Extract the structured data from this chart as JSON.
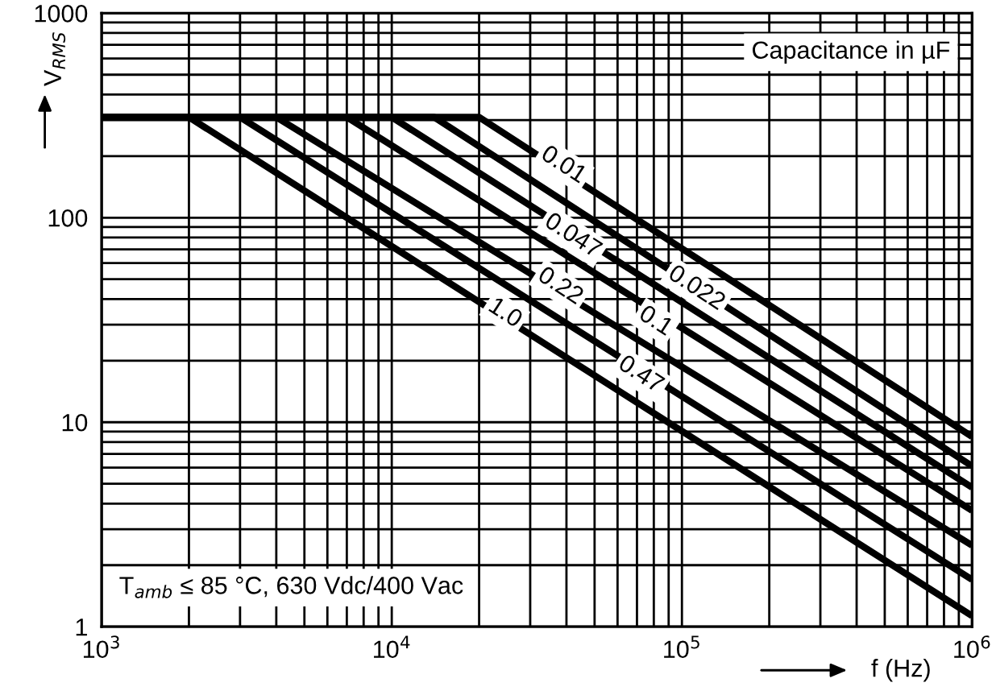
{
  "chart_data": {
    "type": "line",
    "xlabel": "f (Hz)",
    "ylabel": "V$_{RMS}$",
    "log": "xy",
    "grid": true,
    "marker": "none",
    "line_style": "solid",
    "xlim": [
      1000,
      1000000
    ],
    "ylim": [
      1,
      1000
    ],
    "xticks": [
      {
        "value": 1000,
        "label": "10$^{3}$"
      },
      {
        "value": 10000,
        "label": "10$^{4}$"
      },
      {
        "value": 100000,
        "label": "10$^{5}$"
      },
      {
        "value": 1000000,
        "label": "10$^{6}$"
      }
    ],
    "yticks": [
      1,
      10,
      100,
      1000
    ],
    "series": [
      {
        "color": "#000000",
        "x": [
          1000,
          20000,
          1000000
        ],
        "values": [
          310,
          310,
          8.5
        ]
      },
      {
        "color": "#000000",
        "x": [
          1000,
          14000,
          1000000
        ],
        "values": [
          310,
          310,
          6.1
        ]
      },
      {
        "color": "#000000",
        "x": [
          1000,
          10000,
          1000000
        ],
        "values": [
          310,
          310,
          4.8
        ]
      },
      {
        "color": "#000000",
        "x": [
          1000,
          7000,
          1000000
        ],
        "values": [
          310,
          310,
          3.7
        ]
      },
      {
        "color": "#000000",
        "x": [
          1000,
          4000,
          1000000
        ],
        "values": [
          310,
          310,
          2.5
        ]
      },
      {
        "color": "#000000",
        "x": [
          1000,
          3000,
          1000000
        ],
        "values": [
          310,
          310,
          1.7
        ]
      },
      {
        "color": "#000000",
        "x": [
          1000,
          2000,
          1000000
        ],
        "values": [
          310,
          310,
          1.13
        ]
      }
    ],
    "annotations": [
      {
        "text": "0.01",
        "x": 39000,
        "y": 180
      },
      {
        "text": "0.022",
        "x": 112000,
        "y": 45
      },
      {
        "text": "0.047",
        "x": 42000,
        "y": 81
      },
      {
        "text": "0.1",
        "x": 81000,
        "y": 31
      },
      {
        "text": "0.22",
        "x": 38000,
        "y": 46
      },
      {
        "text": "0.47",
        "x": 72000,
        "y": 17
      },
      {
        "text": "1.0",
        "x": 24500,
        "y": 34
      },
      "Capacitance in µF",
      "T$_{amb}$ ≤ 85 °C, 630 Vdc/400 Vac"
    ]
  }
}
